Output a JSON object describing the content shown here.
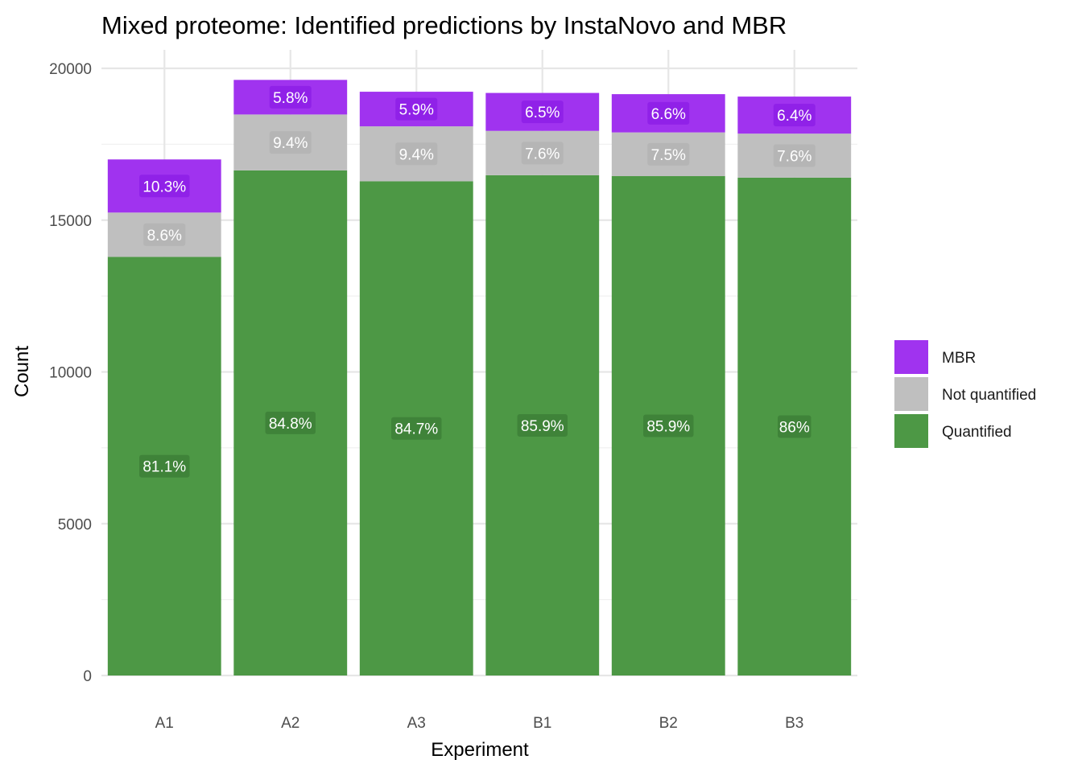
{
  "chart_data": {
    "type": "bar",
    "stacked": true,
    "title": "Mixed proteome: Identified predictions by InstaNovo and MBR",
    "xlabel": "Experiment",
    "ylabel": "Count",
    "categories": [
      "A1",
      "A2",
      "A3",
      "B1",
      "B2",
      "B3"
    ],
    "ylim": [
      0,
      20000
    ],
    "yticks": [
      "0",
      "5000",
      "10000",
      "15000",
      "20000"
    ],
    "grid": true,
    "legend_position": "right",
    "series": [
      {
        "name": "Quantified",
        "color": "#4d9845",
        "values": [
          13790,
          16640,
          16280,
          16480,
          16450,
          16400
        ],
        "labels": [
          "81.1%",
          "84.8%",
          "84.7%",
          "85.9%",
          "85.9%",
          "86%"
        ]
      },
      {
        "name": "Not quantified",
        "color": "#bfbfbf",
        "values": [
          1460,
          1840,
          1810,
          1460,
          1440,
          1450
        ],
        "labels": [
          "8.6%",
          "9.4%",
          "9.4%",
          "7.6%",
          "7.5%",
          "7.6%"
        ]
      },
      {
        "name": "MBR",
        "color": "#a033ef",
        "values": [
          1750,
          1140,
          1140,
          1250,
          1260,
          1220
        ],
        "labels": [
          "10.3%",
          "5.8%",
          "5.9%",
          "6.5%",
          "6.6%",
          "6.4%"
        ]
      }
    ],
    "legend_order": [
      "MBR",
      "Not quantified",
      "Quantified"
    ]
  }
}
